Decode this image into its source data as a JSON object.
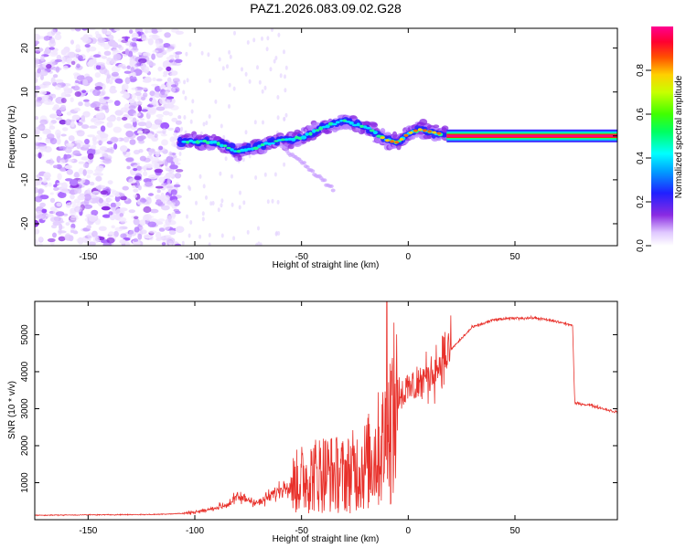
{
  "title": "PAZ1.2026.083.09.02.G28",
  "chart_data": [
    {
      "type": "heatmap",
      "name": "spectrogram",
      "xlabel": "Height of straight line (km)",
      "ylabel": "Frequency (Hz)",
      "xlim": [
        -175,
        98
      ],
      "ylim": [
        -25,
        24.5
      ],
      "xticks": [
        -150,
        -100,
        -50,
        0,
        50
      ],
      "xtick_labels": [
        "-150",
        "-100",
        "-50",
        "0",
        "50"
      ],
      "yticks": [
        -20,
        -10,
        0,
        10,
        20
      ],
      "ytick_labels": [
        "-20",
        "-10",
        "0",
        "10",
        "20"
      ],
      "noise_region_x": [
        -175,
        -107
      ],
      "signal_track": {
        "x": [
          -107,
          -100,
          -90,
          -80,
          -70,
          -60,
          -50,
          -40,
          -30,
          -20,
          -10,
          -5,
          0,
          5,
          10,
          18,
          98
        ],
        "freq": [
          -1.5,
          -1.2,
          -1.5,
          -3.5,
          -2.5,
          -1.0,
          -0.5,
          2.0,
          3.5,
          2.0,
          -1.0,
          -1.5,
          0.5,
          1.5,
          1.0,
          0.2,
          0.0
        ]
      },
      "colorbar": {
        "label": "Normalized spectral amplitude",
        "range": [
          0,
          1
        ],
        "ticks": [
          0.0,
          0.2,
          0.4,
          0.6,
          0.8
        ],
        "tick_labels": [
          "0.0",
          "0.2",
          "0.4",
          "0.6",
          "0.8"
        ]
      }
    },
    {
      "type": "line",
      "name": "snr",
      "xlabel": "Height of straight line (km)",
      "ylabel": "SNR (10 * v/v)",
      "xlim": [
        -175,
        98
      ],
      "ylim": [
        0,
        5900
      ],
      "xticks": [
        -150,
        -100,
        -50,
        0,
        50
      ],
      "xtick_labels": [
        "-150",
        "-100",
        "-50",
        "0",
        "50"
      ],
      "yticks": [
        1000,
        2000,
        3000,
        4000,
        5000
      ],
      "ytick_labels": [
        "1000",
        "2000",
        "3000",
        "4000",
        "5000"
      ],
      "color": "#e8302a",
      "series": [
        {
          "name": "SNR",
          "x": [
            -175,
            -150,
            -120,
            -105,
            -95,
            -85,
            -80,
            -75,
            -70,
            -60,
            -50,
            -40,
            -30,
            -20,
            -12,
            -5,
            0,
            10,
            20,
            30,
            40,
            50,
            60,
            70,
            77,
            78,
            85,
            98
          ],
          "values": [
            120,
            130,
            140,
            170,
            250,
            400,
            600,
            550,
            450,
            800,
            1200,
            1400,
            1300,
            1600,
            2200,
            3400,
            3500,
            3900,
            4600,
            5200,
            5400,
            5450,
            5450,
            5350,
            5250,
            3150,
            3100,
            2900
          ]
        }
      ]
    }
  ]
}
